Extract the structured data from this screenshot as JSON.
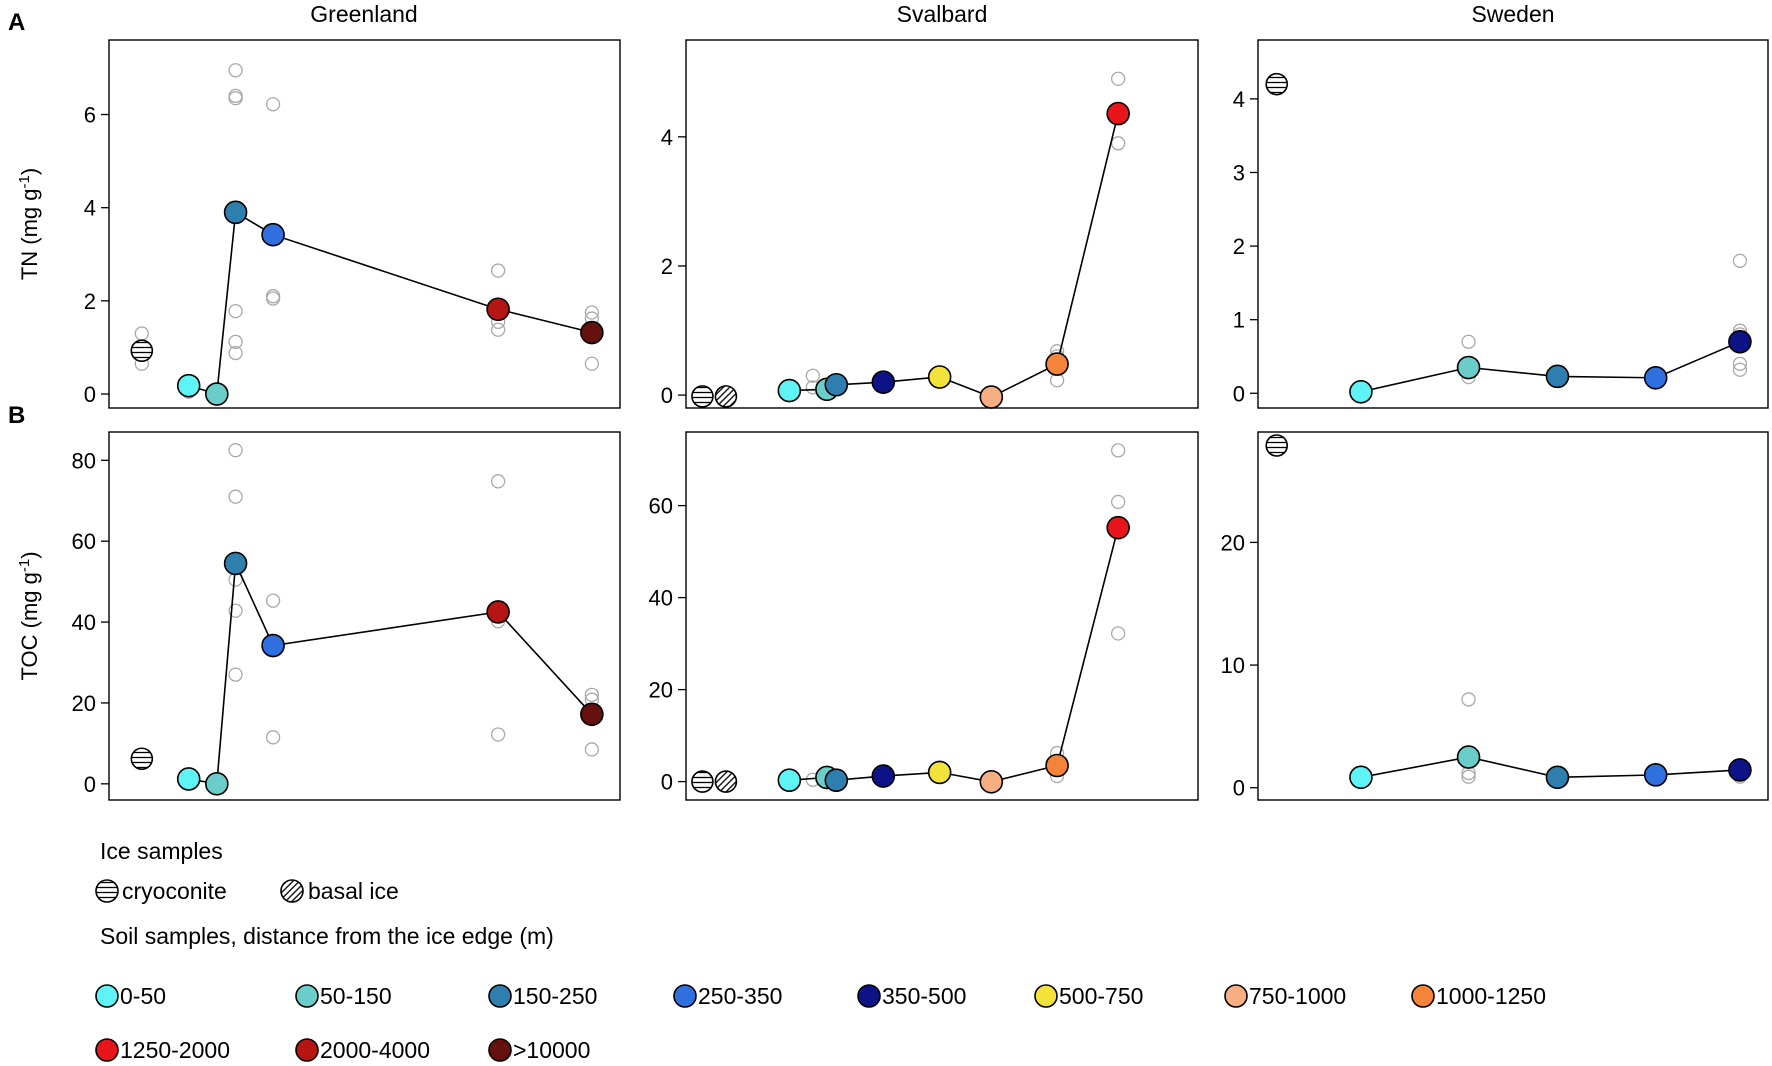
{
  "panel_labels": {
    "a": "A",
    "b": "B"
  },
  "colors": {
    "0-50": "#5EF4F6",
    "50-150": "#6ACDCA",
    "150-250": "#2E7FAE",
    "250-350": "#2F6FE0",
    "350-500": "#0E1287",
    "500-750": "#F3E23A",
    "750-1000": "#F7AE82",
    "1000-1250": "#F3843A",
    "1250-2000": "#E8161A",
    "2000-4000": "#B51513",
    ">10000": "#65110D"
  },
  "legend": {
    "ice_title": "Ice samples",
    "ice_items": [
      {
        "label": "cryoconite",
        "pattern": "horizontal-hatch"
      },
      {
        "label": "basal ice",
        "pattern": "diagonal-hatch"
      }
    ],
    "soil_title": "Soil samples, distance from the ice edge (m)",
    "soil_items": [
      {
        "label": "0-50",
        "color": "#5EF4F6"
      },
      {
        "label": "50-150",
        "color": "#6ACDCA"
      },
      {
        "label": "150-250",
        "color": "#2E7FAE"
      },
      {
        "label": "250-350",
        "color": "#2F6FE0"
      },
      {
        "label": "350-500",
        "color": "#0E1287"
      },
      {
        "label": "500-750",
        "color": "#F3E23A"
      },
      {
        "label": "750-1000",
        "color": "#F7AE82"
      },
      {
        "label": "1000-1250",
        "color": "#F3843A"
      },
      {
        "label": "1250-2000",
        "color": "#E8161A"
      },
      {
        "label": "2000-4000",
        "color": "#B51513"
      },
      {
        "label": ">10000",
        "color": "#65110D"
      }
    ]
  },
  "chart_data": [
    {
      "type": "scatter",
      "id": "gl-tn",
      "row": "A",
      "column_title": "Greenland",
      "ylabel": "TN (mg g-1)",
      "ylim": [
        -0.3,
        7.6
      ],
      "yticks": [
        0,
        2,
        4,
        6
      ],
      "xlim": [
        -0.7,
        10.2
      ],
      "ice": [
        {
          "kind": "cryoconite",
          "x": 0,
          "y": 0.93,
          "reps": [
            0.65,
            1.0,
            1.3
          ]
        }
      ],
      "means": [
        {
          "x": 1.0,
          "y": 0.18,
          "cls": "0-50"
        },
        {
          "x": 1.6,
          "y": 0.0,
          "cls": "50-150"
        },
        {
          "x": 2.0,
          "y": 3.9,
          "cls": "150-250"
        },
        {
          "x": 2.8,
          "y": 3.42,
          "cls": "250-350"
        },
        {
          "x": 7.6,
          "y": 1.82,
          "cls": "2000-4000"
        },
        {
          "x": 9.6,
          "y": 1.32,
          "cls": ">10000"
        }
      ],
      "reps": [
        {
          "x": 1.0,
          "ys": [
            0.05,
            0.2
          ]
        },
        {
          "x": 1.6,
          "ys": [
            0.0
          ]
        },
        {
          "x": 2.0,
          "ys": [
            6.95,
            6.4,
            6.35,
            1.78,
            1.12,
            0.88
          ]
        },
        {
          "x": 2.8,
          "ys": [
            6.22,
            2.1,
            2.05
          ]
        },
        {
          "x": 7.6,
          "ys": [
            2.65,
            1.55,
            1.38
          ]
        },
        {
          "x": 9.6,
          "ys": [
            1.75,
            1.62,
            0.65
          ]
        }
      ]
    },
    {
      "type": "scatter",
      "id": "sv-tn",
      "row": "A",
      "column_title": "Svalbard",
      "ylabel": "",
      "ylim": [
        -0.2,
        5.5
      ],
      "yticks": [
        0,
        2,
        4
      ],
      "xlim": [
        -0.7,
        10.2
      ],
      "ice": [
        {
          "kind": "cryoconite",
          "x": -0.35,
          "y": -0.02,
          "reps": []
        },
        {
          "kind": "basal ice",
          "x": 0.15,
          "y": -0.02,
          "reps": []
        }
      ],
      "means": [
        {
          "x": 1.5,
          "y": 0.07,
          "cls": "0-50"
        },
        {
          "x": 2.3,
          "y": 0.09,
          "cls": "50-150"
        },
        {
          "x": 2.5,
          "y": 0.16,
          "cls": "150-250"
        },
        {
          "x": 3.5,
          "y": 0.2,
          "cls": "350-500"
        },
        {
          "x": 4.7,
          "y": 0.28,
          "cls": "500-750"
        },
        {
          "x": 5.8,
          "y": -0.03,
          "cls": "750-1000"
        },
        {
          "x": 7.2,
          "y": 0.48,
          "cls": "1000-1250"
        },
        {
          "x": 8.5,
          "y": 4.36,
          "cls": "1250-2000"
        }
      ],
      "reps": [
        {
          "x": 2.0,
          "ys": [
            0.3,
            0.12
          ]
        },
        {
          "x": 7.2,
          "ys": [
            0.68,
            0.6,
            0.23
          ]
        },
        {
          "x": 8.5,
          "ys": [
            4.9,
            3.9
          ]
        }
      ]
    },
    {
      "type": "scatter",
      "id": "sw-tn",
      "row": "A",
      "column_title": "Sweden",
      "ylabel": "",
      "ylim": [
        -0.2,
        4.8
      ],
      "yticks": [
        0,
        1,
        2,
        3,
        4
      ],
      "xlim": [
        -0.7,
        10.2
      ],
      "ice": [
        {
          "kind": "cryoconite",
          "x": -0.3,
          "y": 4.2,
          "reps": []
        }
      ],
      "means": [
        {
          "x": 1.5,
          "y": 0.02,
          "cls": "0-50"
        },
        {
          "x": 3.8,
          "y": 0.35,
          "cls": "50-150"
        },
        {
          "x": 5.7,
          "y": 0.23,
          "cls": "150-250"
        },
        {
          "x": 7.8,
          "y": 0.21,
          "cls": "250-350"
        },
        {
          "x": 9.6,
          "y": 0.7,
          "cls": "350-500"
        }
      ],
      "reps": [
        {
          "x": 3.8,
          "ys": [
            0.7,
            0.22
          ]
        },
        {
          "x": 9.6,
          "ys": [
            1.8,
            0.85,
            0.8,
            0.4,
            0.32
          ]
        }
      ]
    },
    {
      "type": "scatter",
      "id": "gl-toc",
      "row": "B",
      "column_title": "",
      "ylabel": "TOC (mg g-1)",
      "ylim": [
        -4,
        87
      ],
      "yticks": [
        0,
        20,
        40,
        60,
        80
      ],
      "xlim": [
        -0.7,
        10.2
      ],
      "ice": [
        {
          "kind": "cryoconite",
          "x": 0,
          "y": 6.2,
          "reps": []
        }
      ],
      "means": [
        {
          "x": 1.0,
          "y": 1.2,
          "cls": "0-50"
        },
        {
          "x": 1.6,
          "y": 0.0,
          "cls": "50-150"
        },
        {
          "x": 2.0,
          "y": 54.5,
          "cls": "150-250"
        },
        {
          "x": 2.8,
          "y": 34.2,
          "cls": "250-350"
        },
        {
          "x": 7.6,
          "y": 42.5,
          "cls": "2000-4000"
        },
        {
          "x": 9.6,
          "y": 17.2,
          "cls": ">10000"
        }
      ],
      "reps": [
        {
          "x": 2.0,
          "ys": [
            82.5,
            71.0,
            50.5,
            42.8,
            27.0
          ]
        },
        {
          "x": 2.8,
          "ys": [
            45.3,
            11.5
          ]
        },
        {
          "x": 7.6,
          "ys": [
            74.8,
            40.2,
            12.2
          ]
        },
        {
          "x": 9.6,
          "ys": [
            22.0,
            20.8,
            8.5
          ]
        }
      ]
    },
    {
      "type": "scatter",
      "id": "sv-toc",
      "row": "B",
      "column_title": "",
      "ylabel": "",
      "ylim": [
        -4,
        76
      ],
      "yticks": [
        0,
        20,
        40,
        60
      ],
      "xlim": [
        -0.7,
        10.2
      ],
      "ice": [
        {
          "kind": "cryoconite",
          "x": -0.35,
          "y": 0.0,
          "reps": []
        },
        {
          "kind": "basal ice",
          "x": 0.15,
          "y": 0.0,
          "reps": []
        }
      ],
      "means": [
        {
          "x": 1.5,
          "y": 0.3,
          "cls": "0-50"
        },
        {
          "x": 2.3,
          "y": 0.9,
          "cls": "50-150"
        },
        {
          "x": 2.5,
          "y": 0.3,
          "cls": "150-250"
        },
        {
          "x": 3.5,
          "y": 1.2,
          "cls": "350-500"
        },
        {
          "x": 4.7,
          "y": 2.0,
          "cls": "500-750"
        },
        {
          "x": 5.8,
          "y": -0.05,
          "cls": "750-1000"
        },
        {
          "x": 7.2,
          "y": 3.5,
          "cls": "1000-1250"
        },
        {
          "x": 8.5,
          "y": 55.2,
          "cls": "1250-2000"
        }
      ],
      "reps": [
        {
          "x": 2.0,
          "ys": [
            0.4
          ]
        },
        {
          "x": 7.2,
          "ys": [
            6.2,
            1.2
          ]
        },
        {
          "x": 8.5,
          "ys": [
            72.0,
            60.8,
            32.2
          ]
        }
      ]
    },
    {
      "type": "scatter",
      "id": "sw-toc",
      "row": "B",
      "column_title": "",
      "ylabel": "",
      "ylim": [
        -1,
        29
      ],
      "yticks": [
        0,
        10,
        20
      ],
      "xlim": [
        -0.7,
        10.2
      ],
      "ice": [
        {
          "kind": "cryoconite",
          "x": -0.3,
          "y": 27.9,
          "reps": []
        }
      ],
      "means": [
        {
          "x": 1.5,
          "y": 0.85,
          "cls": "0-50"
        },
        {
          "x": 3.8,
          "y": 2.5,
          "cls": "50-150"
        },
        {
          "x": 5.7,
          "y": 0.85,
          "cls": "150-250"
        },
        {
          "x": 7.8,
          "y": 1.05,
          "cls": "250-350"
        },
        {
          "x": 9.6,
          "y": 1.45,
          "cls": "350-500"
        }
      ],
      "reps": [
        {
          "x": 3.8,
          "ys": [
            7.2,
            1.2,
            0.9
          ]
        },
        {
          "x": 9.6,
          "ys": [
            1.6,
            0.9
          ]
        }
      ]
    }
  ]
}
